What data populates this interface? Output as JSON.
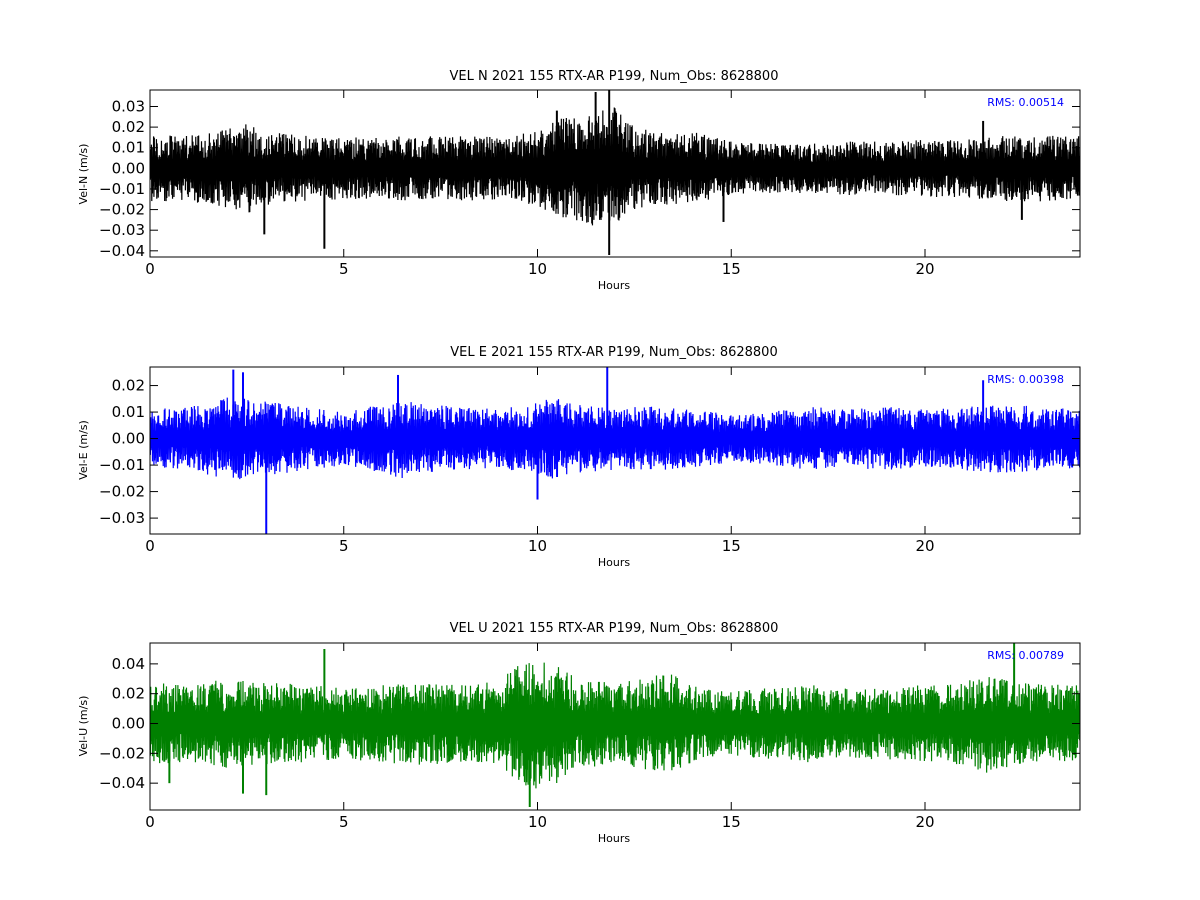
{
  "chart_data": [
    {
      "type": "line",
      "title": "VEL N 2021 155 RTX-AR  P199, Num_Obs: 8628800",
      "xlabel": "Hours",
      "ylabel": "Vel-N (m/s)",
      "xlim": [
        0,
        24
      ],
      "ylim": [
        -0.043,
        0.038
      ],
      "xticks": [
        "0",
        "5",
        "10",
        "15",
        "20"
      ],
      "yticks": [
        "0.03",
        "0.02",
        "0.01",
        "0.00",
        "−0.01",
        "−0.02",
        "−0.03",
        "−0.04"
      ],
      "ytick_values": [
        0.03,
        0.02,
        0.01,
        0.0,
        -0.01,
        -0.02,
        -0.03,
        -0.04
      ],
      "color": "#000000",
      "annotation": "RMS:  0.00514",
      "annotation_color": "#0000ff",
      "series": [
        {
          "envelope_x": [
            0,
            1,
            2,
            2.5,
            3,
            4,
            5,
            6,
            7,
            8,
            9,
            10,
            10.5,
            11,
            11.5,
            12,
            12.5,
            13,
            14,
            15,
            16,
            17,
            18,
            19,
            20,
            21,
            22,
            23,
            24
          ],
          "envelope_amp": [
            0.016,
            0.016,
            0.019,
            0.022,
            0.018,
            0.016,
            0.015,
            0.015,
            0.016,
            0.016,
            0.015,
            0.018,
            0.024,
            0.026,
            0.028,
            0.03,
            0.02,
            0.018,
            0.018,
            0.013,
            0.012,
            0.012,
            0.013,
            0.013,
            0.014,
            0.014,
            0.016,
            0.016,
            0.016
          ],
          "spikes": [
            [
              2.95,
              -0.032
            ],
            [
              4.5,
              -0.039
            ],
            [
              10.5,
              0.028
            ],
            [
              11.5,
              0.037
            ],
            [
              11.85,
              0.038
            ],
            [
              11.85,
              -0.042
            ],
            [
              14.8,
              -0.026
            ],
            [
              21.5,
              0.023
            ],
            [
              22.5,
              -0.025
            ]
          ]
        }
      ]
    },
    {
      "type": "line",
      "title": "VEL E 2021 155 RTX-AR  P199, Num_Obs: 8628800",
      "xlabel": "Hours",
      "ylabel": "Vel-E (m/s)",
      "xlim": [
        0,
        24
      ],
      "ylim": [
        -0.036,
        0.027
      ],
      "xticks": [
        "0",
        "5",
        "10",
        "15",
        "20"
      ],
      "yticks": [
        "0.02",
        "0.01",
        "0.00",
        "−0.01",
        "−0.02",
        "−0.03"
      ],
      "ytick_values": [
        0.02,
        0.01,
        0.0,
        -0.01,
        -0.02,
        -0.03
      ],
      "color": "#0000ff",
      "annotation": "RMS:  0.00398",
      "annotation_color": "#0000ff",
      "series": [
        {
          "envelope_x": [
            0,
            1,
            2,
            3,
            4,
            5,
            6,
            6.5,
            7,
            8,
            9,
            10,
            10.5,
            11,
            12,
            13,
            14,
            15,
            16,
            17,
            18,
            19,
            20,
            21,
            22,
            23,
            24
          ],
          "envelope_amp": [
            0.011,
            0.012,
            0.016,
            0.014,
            0.012,
            0.01,
            0.013,
            0.015,
            0.013,
            0.012,
            0.011,
            0.014,
            0.016,
            0.013,
            0.012,
            0.012,
            0.011,
            0.009,
            0.01,
            0.012,
            0.011,
            0.012,
            0.011,
            0.012,
            0.013,
            0.012,
            0.011
          ],
          "spikes": [
            [
              2.15,
              0.026
            ],
            [
              2.4,
              0.025
            ],
            [
              3.0,
              -0.036
            ],
            [
              11.8,
              0.027
            ],
            [
              6.4,
              0.024
            ],
            [
              21.5,
              0.022
            ],
            [
              10.0,
              -0.023
            ]
          ]
        }
      ]
    },
    {
      "type": "line",
      "title": "VEL U 2021 155 RTX-AR  P199, Num_Obs: 8628800",
      "xlabel": "Hours",
      "ylabel": "Vel-U (m/s)",
      "xlim": [
        0,
        24
      ],
      "ylim": [
        -0.058,
        0.054
      ],
      "xticks": [
        "0",
        "5",
        "10",
        "15",
        "20"
      ],
      "yticks": [
        "0.04",
        "0.02",
        "0.00",
        "−0.02",
        "−0.04"
      ],
      "ytick_values": [
        0.04,
        0.02,
        0.0,
        -0.02,
        -0.04
      ],
      "color": "#008000",
      "annotation": "RMS:  0.00789",
      "annotation_color": "#0000ff",
      "series": [
        {
          "envelope_x": [
            0,
            1,
            2,
            3,
            4,
            5,
            6,
            7,
            8,
            9,
            9.5,
            10,
            10.5,
            11,
            12,
            13,
            13.5,
            14,
            15,
            16,
            17,
            18,
            19,
            20,
            21,
            21.5,
            22,
            23,
            24
          ],
          "envelope_amp": [
            0.028,
            0.026,
            0.03,
            0.028,
            0.026,
            0.024,
            0.026,
            0.028,
            0.026,
            0.028,
            0.04,
            0.044,
            0.04,
            0.03,
            0.028,
            0.032,
            0.034,
            0.026,
            0.022,
            0.024,
            0.026,
            0.024,
            0.024,
            0.026,
            0.028,
            0.034,
            0.03,
            0.026,
            0.026
          ],
          "spikes": [
            [
              4.5,
              0.05
            ],
            [
              2.4,
              -0.047
            ],
            [
              3.0,
              -0.048
            ],
            [
              9.8,
              -0.056
            ],
            [
              22.3,
              0.054
            ],
            [
              0.5,
              -0.04
            ]
          ]
        }
      ]
    }
  ]
}
